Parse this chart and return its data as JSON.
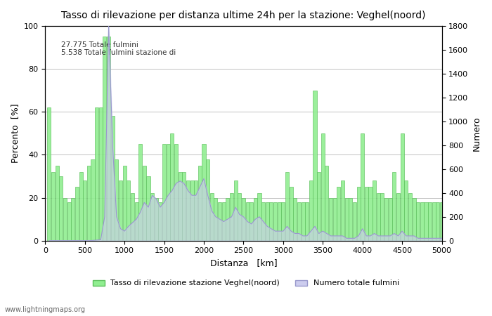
{
  "title": "Tasso di rilevazione per distanza ultime 24h per la stazione: Veghel(noord)",
  "xlabel": "Distanza   [km]",
  "ylabel_left": "Percento  [%]",
  "ylabel_right": "Numero",
  "annotation": "27.775 Totale fulmini\n5.538 Totale fulmini stazione di",
  "xlim": [
    0,
    5000
  ],
  "ylim_left": [
    0,
    100
  ],
  "ylim_right": [
    0,
    1800
  ],
  "yticks_left": [
    0,
    20,
    40,
    60,
    80,
    100
  ],
  "yticks_right": [
    0,
    200,
    400,
    600,
    800,
    1000,
    1200,
    1400,
    1600,
    1800
  ],
  "xticks": [
    0,
    500,
    1000,
    1500,
    2000,
    2500,
    3000,
    3500,
    4000,
    4500,
    5000
  ],
  "bar_color": "#90EE90",
  "bar_edgecolor": "#5CBF5C",
  "line_color": "#9999CC",
  "line_fill_color": "#CCCCEE",
  "background_color": "#ffffff",
  "grid_color": "#aaaaaa",
  "watermark": "www.lightningmaps.org",
  "legend1": "Tasso di rilevazione stazione Veghel(noord)",
  "legend2": "Numero totale fulmini",
  "distances": [
    50,
    100,
    150,
    200,
    250,
    300,
    350,
    400,
    450,
    500,
    550,
    600,
    650,
    700,
    750,
    800,
    850,
    900,
    950,
    1000,
    1050,
    1100,
    1150,
    1200,
    1250,
    1300,
    1350,
    1400,
    1450,
    1500,
    1550,
    1600,
    1650,
    1700,
    1750,
    1800,
    1850,
    1900,
    1950,
    2000,
    2050,
    2100,
    2150,
    2200,
    2250,
    2300,
    2350,
    2400,
    2450,
    2500,
    2550,
    2600,
    2650,
    2700,
    2750,
    2800,
    2850,
    2900,
    2950,
    3000,
    3050,
    3100,
    3150,
    3200,
    3250,
    3300,
    3350,
    3400,
    3450,
    3500,
    3550,
    3600,
    3650,
    3700,
    3750,
    3800,
    3850,
    3900,
    3950,
    4000,
    4050,
    4100,
    4150,
    4200,
    4250,
    4300,
    4350,
    4400,
    4450,
    4500,
    4550,
    4600,
    4650,
    4700,
    4750,
    4800,
    4850,
    4900,
    4950,
    5000
  ],
  "detection_rate": [
    62,
    32,
    35,
    30,
    20,
    18,
    20,
    25,
    32,
    28,
    35,
    38,
    62,
    62,
    95,
    95,
    58,
    38,
    28,
    35,
    28,
    22,
    18,
    45,
    35,
    30,
    22,
    20,
    18,
    45,
    45,
    50,
    45,
    32,
    32,
    28,
    28,
    28,
    35,
    45,
    38,
    22,
    20,
    18,
    18,
    20,
    22,
    28,
    22,
    20,
    18,
    18,
    20,
    22,
    18,
    18,
    18,
    18,
    18,
    18,
    32,
    25,
    20,
    18,
    18,
    18,
    28,
    70,
    32,
    50,
    35,
    20,
    20,
    25,
    28,
    20,
    20,
    18,
    25,
    50,
    25,
    25,
    28,
    22,
    22,
    20,
    20,
    32,
    22,
    50,
    28,
    22,
    20,
    18,
    18,
    18,
    18,
    18,
    18,
    18
  ],
  "total_lightning": [
    0,
    0,
    0,
    0,
    0,
    0,
    0,
    0,
    0,
    0,
    0,
    2,
    5,
    8,
    200,
    1800,
    800,
    200,
    100,
    80,
    120,
    150,
    180,
    240,
    320,
    280,
    380,
    350,
    280,
    320,
    380,
    420,
    480,
    500,
    480,
    420,
    380,
    380,
    450,
    520,
    380,
    250,
    200,
    180,
    160,
    180,
    200,
    280,
    220,
    200,
    160,
    140,
    180,
    200,
    160,
    120,
    100,
    80,
    80,
    80,
    120,
    80,
    60,
    60,
    40,
    40,
    80,
    120,
    60,
    80,
    60,
    40,
    40,
    40,
    40,
    20,
    20,
    20,
    40,
    100,
    40,
    40,
    60,
    40,
    40,
    40,
    40,
    60,
    40,
    80,
    40,
    40,
    40,
    20,
    20,
    20,
    20,
    20,
    20,
    20
  ]
}
